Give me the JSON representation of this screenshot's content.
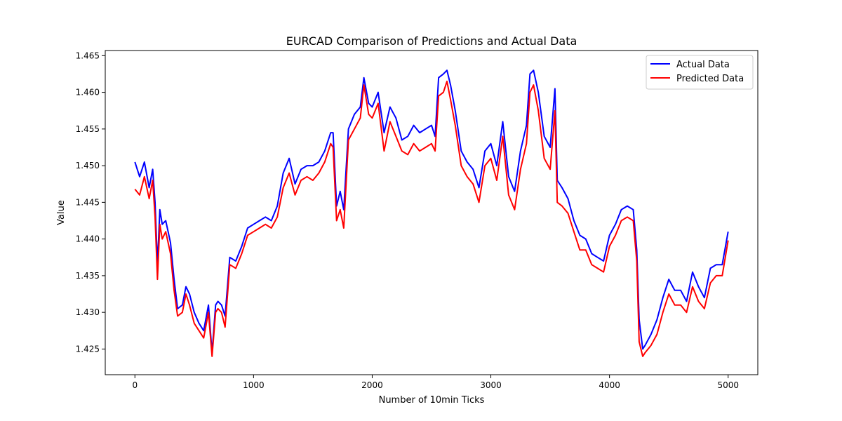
{
  "chart_data": {
    "type": "line",
    "title": "EURCAD Comparison of Predictions and Actual Data",
    "xlabel": "Number of 10min Ticks",
    "ylabel": "Value",
    "xlim": [
      -250,
      5250
    ],
    "ylim": [
      1.4215,
      1.4657
    ],
    "x_ticks": [
      0,
      1000,
      2000,
      3000,
      4000,
      5000
    ],
    "x_tick_labels": [
      "0",
      "1000",
      "2000",
      "3000",
      "4000",
      "5000"
    ],
    "y_ticks": [
      1.425,
      1.43,
      1.435,
      1.44,
      1.445,
      1.45,
      1.455,
      1.46,
      1.465
    ],
    "y_tick_labels": [
      "1.425",
      "1.430",
      "1.435",
      "1.440",
      "1.445",
      "1.450",
      "1.455",
      "1.460",
      "1.465"
    ],
    "grid": false,
    "legend_position": "top-right",
    "x": [
      0,
      40,
      80,
      120,
      150,
      170,
      190,
      210,
      230,
      260,
      300,
      330,
      360,
      400,
      430,
      460,
      500,
      540,
      580,
      620,
      650,
      680,
      700,
      730,
      760,
      800,
      850,
      900,
      950,
      1000,
      1050,
      1100,
      1150,
      1200,
      1250,
      1300,
      1350,
      1400,
      1450,
      1500,
      1550,
      1600,
      1650,
      1670,
      1700,
      1730,
      1760,
      1800,
      1850,
      1900,
      1930,
      1970,
      2000,
      2050,
      2100,
      2150,
      2200,
      2250,
      2300,
      2350,
      2400,
      2450,
      2500,
      2530,
      2560,
      2600,
      2630,
      2660,
      2700,
      2750,
      2800,
      2850,
      2900,
      2950,
      3000,
      3050,
      3100,
      3150,
      3200,
      3250,
      3300,
      3330,
      3360,
      3400,
      3450,
      3500,
      3540,
      3560,
      3600,
      3650,
      3700,
      3750,
      3800,
      3850,
      3900,
      3950,
      4000,
      4050,
      4100,
      4150,
      4200,
      4230,
      4250,
      4280,
      4300,
      4350,
      4400,
      4450,
      4500,
      4550,
      4600,
      4650,
      4700,
      4750,
      4800,
      4850,
      4900,
      4950,
      5000
    ],
    "series": [
      {
        "name": "Actual Data",
        "color": "#0000ff",
        "values": [
          1.4505,
          1.4485,
          1.4505,
          1.447,
          1.4495,
          1.445,
          1.4365,
          1.444,
          1.442,
          1.4425,
          1.4395,
          1.4345,
          1.4305,
          1.431,
          1.4335,
          1.4325,
          1.43,
          1.4285,
          1.4275,
          1.431,
          1.4245,
          1.431,
          1.4315,
          1.431,
          1.4295,
          1.4375,
          1.437,
          1.439,
          1.4415,
          1.442,
          1.4425,
          1.443,
          1.4425,
          1.4445,
          1.449,
          1.451,
          1.4475,
          1.4495,
          1.45,
          1.45,
          1.4505,
          1.452,
          1.4545,
          1.4545,
          1.4445,
          1.4465,
          1.444,
          1.455,
          1.457,
          1.458,
          1.462,
          1.4585,
          1.458,
          1.46,
          1.4545,
          1.458,
          1.4565,
          1.4535,
          1.454,
          1.4555,
          1.4545,
          1.455,
          1.4555,
          1.454,
          1.462,
          1.4625,
          1.463,
          1.461,
          1.4575,
          1.452,
          1.4505,
          1.4495,
          1.447,
          1.452,
          1.453,
          1.45,
          1.456,
          1.4485,
          1.4465,
          1.452,
          1.4555,
          1.4625,
          1.463,
          1.46,
          1.454,
          1.4525,
          1.4605,
          1.448,
          1.447,
          1.4455,
          1.4425,
          1.4405,
          1.44,
          1.438,
          1.4375,
          1.437,
          1.4405,
          1.442,
          1.444,
          1.4445,
          1.444,
          1.4385,
          1.429,
          1.425,
          1.4255,
          1.427,
          1.429,
          1.432,
          1.4345,
          1.433,
          1.433,
          1.4315,
          1.4355,
          1.4335,
          1.432,
          1.436,
          1.4365,
          1.4365,
          1.441
        ]
      },
      {
        "name": "Predicted Data",
        "color": "#ff0000",
        "values": [
          1.4468,
          1.446,
          1.4485,
          1.4455,
          1.448,
          1.443,
          1.4345,
          1.442,
          1.44,
          1.441,
          1.438,
          1.433,
          1.4295,
          1.43,
          1.4325,
          1.431,
          1.4285,
          1.4275,
          1.4265,
          1.43,
          1.424,
          1.43,
          1.4305,
          1.43,
          1.428,
          1.4365,
          1.436,
          1.438,
          1.4405,
          1.441,
          1.4415,
          1.442,
          1.4415,
          1.443,
          1.447,
          1.449,
          1.446,
          1.448,
          1.4485,
          1.448,
          1.449,
          1.4505,
          1.453,
          1.4525,
          1.4425,
          1.444,
          1.4415,
          1.4535,
          1.455,
          1.4565,
          1.461,
          1.457,
          1.4565,
          1.4585,
          1.452,
          1.456,
          1.454,
          1.452,
          1.4515,
          1.453,
          1.452,
          1.4525,
          1.453,
          1.452,
          1.4595,
          1.46,
          1.4615,
          1.459,
          1.4555,
          1.45,
          1.4485,
          1.4475,
          1.445,
          1.45,
          1.451,
          1.448,
          1.454,
          1.446,
          1.444,
          1.4495,
          1.453,
          1.46,
          1.461,
          1.4575,
          1.451,
          1.4495,
          1.4575,
          1.445,
          1.4445,
          1.4435,
          1.441,
          1.4385,
          1.4385,
          1.4365,
          1.436,
          1.4355,
          1.439,
          1.4405,
          1.4425,
          1.443,
          1.4425,
          1.437,
          1.426,
          1.424,
          1.4245,
          1.4255,
          1.427,
          1.43,
          1.4325,
          1.431,
          1.431,
          1.43,
          1.4335,
          1.4315,
          1.4305,
          1.434,
          1.435,
          1.435,
          1.4398
        ]
      }
    ]
  }
}
